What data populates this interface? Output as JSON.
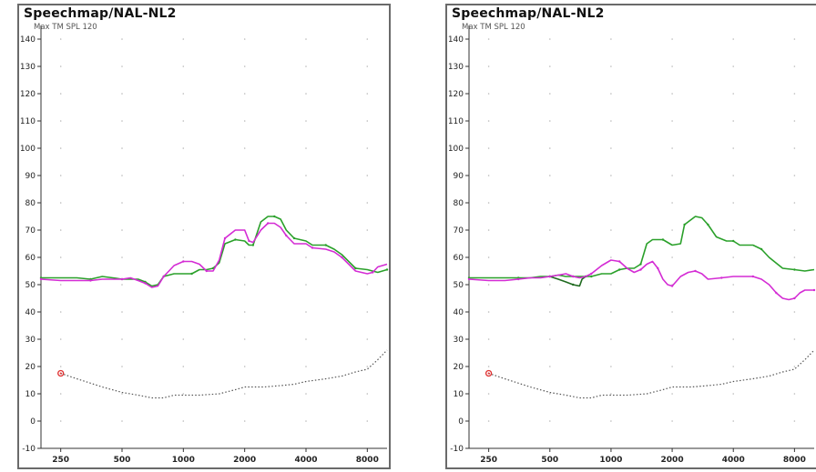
{
  "chart_data": [
    {
      "type": "line",
      "title": "Speechmap/NAL-NL2",
      "subtitle": "Max TM SPL 120",
      "xlabel": "",
      "ylabel": "",
      "xscale": "log",
      "ylim": [
        -10,
        145
      ],
      "xlim": [
        200,
        10000
      ],
      "yticks": [
        -10,
        0,
        10,
        20,
        30,
        40,
        50,
        60,
        70,
        80,
        90,
        100,
        110,
        120,
        130,
        140
      ],
      "xticks": [
        250,
        500,
        1000,
        2000,
        4000,
        8000
      ],
      "grid": "dotted",
      "colors": {
        "green": "#2aa02a",
        "dark_green": "#1f6a1f",
        "magenta": "#d42cd4",
        "threshold": "#555555",
        "marker": "#e03030"
      },
      "series": [
        {
          "color": "#2aa02a",
          "style": "solid",
          "points": [
            [
              200,
              52.5
            ],
            [
              250,
              52.5
            ],
            [
              300,
              52.5
            ],
            [
              350,
              52
            ],
            [
              400,
              53
            ],
            [
              450,
              52.5
            ],
            [
              500,
              52
            ],
            [
              550,
              52
            ],
            [
              600,
              52
            ],
            [
              650,
              51
            ],
            [
              700,
              49.5
            ],
            [
              750,
              50
            ],
            [
              800,
              53
            ],
            [
              900,
              54
            ],
            [
              1000,
              54
            ],
            [
              1100,
              54
            ],
            [
              1200,
              55.5
            ],
            [
              1300,
              55.5
            ],
            [
              1400,
              56
            ],
            [
              1500,
              58
            ],
            [
              1600,
              65
            ],
            [
              1800,
              66.5
            ],
            [
              2000,
              66
            ],
            [
              2100,
              64.5
            ],
            [
              2200,
              64.5
            ],
            [
              2400,
              73
            ],
            [
              2600,
              75
            ],
            [
              2800,
              75
            ],
            [
              3000,
              74
            ],
            [
              3200,
              70
            ],
            [
              3500,
              67
            ],
            [
              4000,
              66
            ],
            [
              4300,
              64.5
            ],
            [
              5000,
              64.5
            ],
            [
              5500,
              63
            ],
            [
              6000,
              61
            ],
            [
              7000,
              56
            ],
            [
              8000,
              55.5
            ],
            [
              9000,
              54.5
            ],
            [
              10000,
              55.5
            ]
          ]
        },
        {
          "color": "#d42cd4",
          "style": "solid",
          "points": [
            [
              200,
              52
            ],
            [
              250,
              51.5
            ],
            [
              300,
              51.5
            ],
            [
              350,
              51.5
            ],
            [
              400,
              52
            ],
            [
              450,
              52
            ],
            [
              500,
              52
            ],
            [
              550,
              52.5
            ],
            [
              600,
              51.5
            ],
            [
              650,
              50.5
            ],
            [
              700,
              49
            ],
            [
              750,
              49.5
            ],
            [
              800,
              53
            ],
            [
              850,
              55
            ],
            [
              900,
              57
            ],
            [
              1000,
              58.5
            ],
            [
              1100,
              58.5
            ],
            [
              1200,
              57.5
            ],
            [
              1300,
              55
            ],
            [
              1400,
              55
            ],
            [
              1500,
              59
            ],
            [
              1600,
              67
            ],
            [
              1800,
              70
            ],
            [
              2000,
              70
            ],
            [
              2100,
              66
            ],
            [
              2200,
              65.5
            ],
            [
              2400,
              70
            ],
            [
              2600,
              72.5
            ],
            [
              2800,
              72.5
            ],
            [
              3000,
              71
            ],
            [
              3200,
              68
            ],
            [
              3500,
              65
            ],
            [
              4000,
              65
            ],
            [
              4300,
              63.5
            ],
            [
              5000,
              63
            ],
            [
              5500,
              62
            ],
            [
              6000,
              60
            ],
            [
              7000,
              55
            ],
            [
              8000,
              54
            ],
            [
              8500,
              54.5
            ],
            [
              9000,
              56.5
            ],
            [
              10000,
              57.5
            ]
          ]
        },
        {
          "color": "#555555",
          "style": "dotted",
          "points": [
            [
              250,
              17.5
            ],
            [
              300,
              15.5
            ],
            [
              400,
              12.5
            ],
            [
              500,
              10.5
            ],
            [
              600,
              9.5
            ],
            [
              700,
              8.5
            ],
            [
              800,
              8.5
            ],
            [
              900,
              9.5
            ],
            [
              1000,
              9.5
            ],
            [
              1200,
              9.5
            ],
            [
              1500,
              10
            ],
            [
              1800,
              11.5
            ],
            [
              2000,
              12.5
            ],
            [
              2500,
              12.5
            ],
            [
              3000,
              13
            ],
            [
              3500,
              13.5
            ],
            [
              4000,
              14.5
            ],
            [
              5000,
              15.5
            ],
            [
              6000,
              16.5
            ],
            [
              7000,
              18
            ],
            [
              8000,
              19
            ],
            [
              9000,
              22.5
            ],
            [
              10000,
              26
            ]
          ]
        }
      ],
      "markers": [
        {
          "shape": "circle",
          "color": "#e03030",
          "x": 250,
          "y": 17.5
        }
      ]
    },
    {
      "type": "line",
      "title": "Speechmap/NAL-NL2",
      "subtitle": "Max TM SPL 120",
      "xlabel": "",
      "ylabel": "",
      "xscale": "log",
      "ylim": [
        -10,
        145
      ],
      "xlim": [
        200,
        10000
      ],
      "yticks": [
        -10,
        0,
        10,
        20,
        30,
        40,
        50,
        60,
        70,
        80,
        90,
        100,
        110,
        120,
        130,
        140
      ],
      "xticks": [
        250,
        500,
        1000,
        2000,
        4000,
        8000
      ],
      "grid": "dotted",
      "series": [
        {
          "color": "#2aa02a",
          "style": "solid",
          "points": [
            [
              200,
              52.5
            ],
            [
              250,
              52.5
            ],
            [
              300,
              52.5
            ],
            [
              350,
              52.5
            ],
            [
              400,
              52.5
            ],
            [
              450,
              53
            ],
            [
              500,
              53
            ],
            [
              550,
              53.5
            ],
            [
              600,
              53
            ],
            [
              650,
              53
            ],
            [
              700,
              53
            ],
            [
              750,
              53
            ],
            [
              800,
              53
            ],
            [
              900,
              54
            ],
            [
              1000,
              54
            ],
            [
              1100,
              55.5
            ],
            [
              1200,
              56
            ],
            [
              1300,
              56
            ],
            [
              1400,
              57.5
            ],
            [
              1500,
              65
            ],
            [
              1600,
              66.5
            ],
            [
              1800,
              66.5
            ],
            [
              2000,
              64.5
            ],
            [
              2200,
              65
            ],
            [
              2300,
              72
            ],
            [
              2600,
              75
            ],
            [
              2800,
              74.5
            ],
            [
              3000,
              72
            ],
            [
              3300,
              67.5
            ],
            [
              3700,
              66
            ],
            [
              4000,
              66
            ],
            [
              4300,
              64.5
            ],
            [
              5000,
              64.5
            ],
            [
              5500,
              63
            ],
            [
              6000,
              60
            ],
            [
              7000,
              56
            ],
            [
              8000,
              55.5
            ],
            [
              9000,
              55
            ],
            [
              10000,
              55.5
            ]
          ]
        },
        {
          "color": "#1f6a1f",
          "style": "solid",
          "points": [
            [
              500,
              53
            ],
            [
              550,
              52
            ],
            [
              600,
              51
            ],
            [
              650,
              50
            ],
            [
              700,
              49.5
            ],
            [
              720,
              52
            ],
            [
              750,
              53
            ]
          ]
        },
        {
          "color": "#d42cd4",
          "style": "solid",
          "points": [
            [
              200,
              52
            ],
            [
              250,
              51.5
            ],
            [
              300,
              51.5
            ],
            [
              350,
              52
            ],
            [
              400,
              52.5
            ],
            [
              450,
              52.5
            ],
            [
              500,
              53
            ],
            [
              550,
              53.5
            ],
            [
              600,
              54
            ],
            [
              650,
              53
            ],
            [
              700,
              52.5
            ],
            [
              750,
              53
            ],
            [
              800,
              54
            ],
            [
              900,
              57
            ],
            [
              1000,
              59
            ],
            [
              1100,
              58.5
            ],
            [
              1200,
              56
            ],
            [
              1300,
              54.5
            ],
            [
              1400,
              55.5
            ],
            [
              1500,
              57.5
            ],
            [
              1600,
              58.5
            ],
            [
              1700,
              56
            ],
            [
              1800,
              52
            ],
            [
              1900,
              50
            ],
            [
              2000,
              49.5
            ],
            [
              2200,
              53
            ],
            [
              2400,
              54.5
            ],
            [
              2600,
              55
            ],
            [
              2800,
              54
            ],
            [
              3000,
              52
            ],
            [
              3500,
              52.5
            ],
            [
              4000,
              53
            ],
            [
              4500,
              53
            ],
            [
              5000,
              53
            ],
            [
              5500,
              52
            ],
            [
              6000,
              50
            ],
            [
              6500,
              47
            ],
            [
              7000,
              45
            ],
            [
              7500,
              44.5
            ],
            [
              8000,
              45
            ],
            [
              8500,
              47
            ],
            [
              9000,
              48
            ],
            [
              10000,
              48
            ]
          ]
        },
        {
          "color": "#555555",
          "style": "dotted",
          "points": [
            [
              250,
              17.5
            ],
            [
              300,
              15.5
            ],
            [
              400,
              12.5
            ],
            [
              500,
              10.5
            ],
            [
              600,
              9.5
            ],
            [
              700,
              8.5
            ],
            [
              800,
              8.5
            ],
            [
              900,
              9.5
            ],
            [
              1000,
              9.5
            ],
            [
              1200,
              9.5
            ],
            [
              1500,
              10
            ],
            [
              1800,
              11.5
            ],
            [
              2000,
              12.5
            ],
            [
              2500,
              12.5
            ],
            [
              3000,
              13
            ],
            [
              3500,
              13.5
            ],
            [
              4000,
              14.5
            ],
            [
              5000,
              15.5
            ],
            [
              6000,
              16.5
            ],
            [
              7000,
              18
            ],
            [
              8000,
              19
            ],
            [
              9000,
              22.5
            ],
            [
              10000,
              26
            ]
          ]
        }
      ],
      "markers": [
        {
          "shape": "circle",
          "color": "#e03030",
          "x": 250,
          "y": 17.5
        }
      ]
    }
  ]
}
